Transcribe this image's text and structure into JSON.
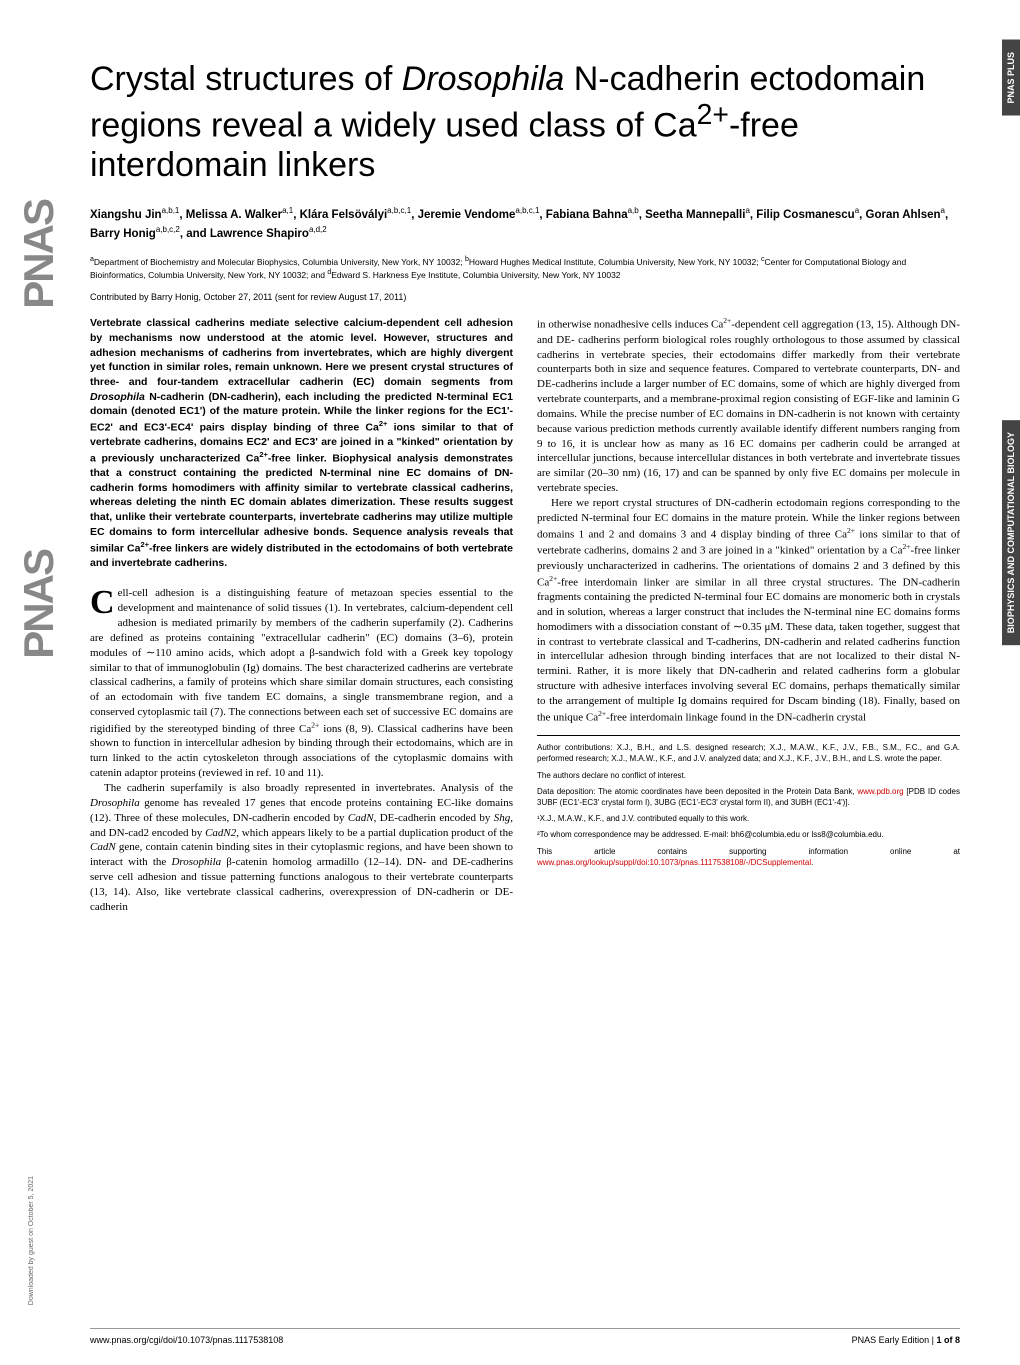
{
  "side_tabs": {
    "tab1": "PNAS PLUS",
    "tab2": "BIOPHYSICS AND COMPUTATIONAL BIOLOGY"
  },
  "logo": "PNAS",
  "downloaded_note": "Downloaded by guest on October 5, 2021",
  "title_parts": {
    "pre": "Crystal structures of ",
    "italic": "Drosophila",
    "post1": " N-cadherin ectodomain regions reveal a widely used class of Ca",
    "sup": "2+",
    "post2": "-free interdomain linkers"
  },
  "authors_html": "Xiangshu Jin<sup>a,b,1</sup>, Melissa A. Walker<sup>a,1</sup>, Klára Felsövályi<sup>a,b,c,1</sup>, Jeremie Vendome<sup>a,b,c,1</sup>, Fabiana Bahna<sup>a,b</sup>, Seetha Mannepalli<sup>a</sup>, Filip Cosmanescu<sup>a</sup>, Goran Ahlsen<sup>a</sup>, Barry Honig<sup>a,b,c,2</sup>, and Lawrence Shapiro<sup>a,d,2</sup>",
  "affiliations_html": "<sup>a</sup>Department of Biochemistry and Molecular Biophysics, Columbia University, New York, NY 10032; <sup>b</sup>Howard Hughes Medical Institute, Columbia University, New York, NY 10032; <sup>c</sup>Center for Computational Biology and Bioinformatics, Columbia University, New York, NY 10032; and <sup>d</sup>Edward S. Harkness Eye Institute, Columbia University, New York, NY 10032",
  "contributed": "Contributed by Barry Honig, October 27, 2011 (sent for review August 17, 2011)",
  "abstract_html": "Vertebrate classical cadherins mediate selective calcium-dependent cell adhesion by mechanisms now understood at the atomic level. However, structures and adhesion mechanisms of cadherins from invertebrates, which are highly divergent yet function in similar roles, remain unknown. Here we present crystal structures of three- and four-tandem extracellular cadherin (EC) domain segments from <i>Drosophila</i> N-cadherin (DN-cadherin), each including the predicted N-terminal EC1 domain (denoted EC1') of the mature protein. While the linker regions for the EC1'-EC2' and EC3'-EC4' pairs display binding of three Ca<sup>2+</sup> ions similar to that of vertebrate cadherins, domains EC2' and EC3' are joined in a \"kinked\" orientation by a previously uncharacterized Ca<sup>2+</sup>-free linker. Biophysical analysis demonstrates that a construct containing the predicted N-terminal nine EC domains of DN-cadherin forms homodimers with affinity similar to vertebrate classical cadherins, whereas deleting the ninth EC domain ablates dimerization. These results suggest that, unlike their vertebrate counterparts, invertebrate cadherins may utilize multiple EC domains to form intercellular adhesive bonds. Sequence analysis reveals that similar Ca<sup>2+</sup>-free linkers are widely distributed in the ectodomains of both vertebrate and invertebrate cadherins.",
  "col1_p1_html": "ell-cell adhesion is a distinguishing feature of metazoan species essential to the development and maintenance of solid tissues (1). In vertebrates, calcium-dependent cell adhesion is mediated primarily by members of the cadherin superfamily (2). Cadherins are defined as proteins containing \"extracellular cadherin\" (EC) domains (3–6), protein modules of ∼110 amino acids, which adopt a β-sandwich fold with a Greek key topology similar to that of immunoglobulin (Ig) domains. The best characterized cadherins are vertebrate classical cadherins, a family of proteins which share similar domain structures, each consisting of an ectodomain with five tandem EC domains, a single transmembrane region, and a conserved cytoplasmic tail (7). The connections between each set of successive EC domains are rigidified by the stereotyped binding of three Ca<sup>2+</sup> ions (8, 9). Classical cadherins have been shown to function in intercellular adhesion by binding through their ectodomains, which are in turn linked to the actin cytoskeleton through associations of the cytoplasmic domains with catenin adaptor proteins (reviewed in ref. 10 and 11).",
  "col1_p2_html": "The cadherin superfamily is also broadly represented in invertebrates. Analysis of the <i>Drosophila</i> genome has revealed 17 genes that encode proteins containing EC-like domains (12). Three of these molecules, DN-cadherin encoded by <i>CadN</i>, DE-cadherin encoded by <i>Shg</i>, and DN-cad2 encoded by <i>CadN2</i>, which appears likely to be a partial duplication product of the <i>CadN</i> gene, contain catenin binding sites in their cytoplasmic regions, and have been shown to interact with the <i>Drosophila</i> β-catenin homolog armadillo (12–14). DN- and DE-cadherins serve cell adhesion and tissue patterning functions analogous to their vertebrate counterparts (13, 14). Also, like vertebrate classical cadherins, overexpression of DN-cadherin or DE-cadherin",
  "col2_p1_html": "in otherwise nonadhesive cells induces Ca<sup>2+</sup>-dependent cell aggregation (13, 15). Although DN- and DE- cadherins perform biological roles roughly orthologous to those assumed by classical cadherins in vertebrate species, their ectodomains differ markedly from their vertebrate counterparts both in size and sequence features. Compared to vertebrate counterparts, DN- and DE-cadherins include a larger number of EC domains, some of which are highly diverged from vertebrate counterparts, and a membrane-proximal region consisting of EGF-like and laminin G domains. While the precise number of EC domains in DN-cadherin is not known with certainty because various prediction methods currently available identify different numbers ranging from 9 to 16, it is unclear how as many as 16 EC domains per cadherin could be arranged at intercellular junctions, because intercellular distances in both vertebrate and invertebrate tissues are similar (20–30 nm) (16, 17) and can be spanned by only five EC domains per molecule in vertebrate species.",
  "col2_p2_html": "Here we report crystal structures of DN-cadherin ectodomain regions corresponding to the predicted N-terminal four EC domains in the mature protein. While the linker regions between domains 1 and 2 and domains 3 and 4 display binding of three Ca<sup>2+</sup> ions similar to that of vertebrate cadherins, domains 2 and 3 are joined in a \"kinked\" orientation by a Ca<sup>2+</sup>-free linker previously uncharacterized in cadherins. The orientations of domains 2 and 3 defined by this Ca<sup>2+</sup>-free interdomain linker are similar in all three crystal structures. The DN-cadherin fragments containing the predicted N-terminal four EC domains are monomeric both in crystals and in solution, whereas a larger construct that includes the N-terminal nine EC domains forms homodimers with a dissociation constant of ∼0.35 μM. These data, taken together, suggest that in contrast to vertebrate classical and T-cadherins, DN-cadherin and related cadherins function in intercellular adhesion through binding interfaces that are not localized to their distal N-termini. Rather, it is more likely that DN-cadherin and related cadherins form a globular structure with adhesive interfaces involving several EC domains, perhaps thematically similar to the arrangement of multiple Ig domains required for Dscam binding (18). Finally, based on the unique Ca<sup>2+</sup>-free interdomain linkage found in the DN-cadherin crystal",
  "footnotes": {
    "author_contrib": "Author contributions: X.J., B.H., and L.S. designed research; X.J., M.A.W., K.F., J.V., F.B., S.M., F.C., and G.A. performed research; X.J., M.A.W., K.F., and J.V. analyzed data; and X.J., K.F., J.V., B.H., and L.S. wrote the paper.",
    "conflict": "The authors declare no conflict of interest.",
    "deposition_pre": "Data deposition: The atomic coordinates have been deposited in the Protein Data Bank, ",
    "deposition_link": "www.pdb.org",
    "deposition_post": " [PDB ID codes 3UBF (EC1'-EC3' crystal form I), 3UBG (EC1'-EC3' crystal form II), and 3UBH (EC1'-4')].",
    "equal": "¹X.J., M.A.W., K.F., and J.V. contributed equally to this work.",
    "correspond": "²To whom correspondence may be addressed. E-mail: bh6@columbia.edu or lss8@columbia.edu.",
    "supp_pre": "This article contains supporting information online at ",
    "supp_link": "www.pnas.org/lookup/suppl/doi:10.1073/pnas.1117538108/-/DCSupplemental",
    "supp_post": "."
  },
  "footer": {
    "left": "www.pnas.org/cgi/doi/10.1073/pnas.1117538108",
    "right_label": "PNAS Early Edition",
    "right_sep": " | ",
    "right_page": "1 of 8"
  },
  "colors": {
    "link": "#cc0000",
    "tab_bg": "#444444",
    "logo": "#888888"
  },
  "typography": {
    "title_fontsize": 34,
    "authors_fontsize": 11.5,
    "affil_fontsize": 8.5,
    "abstract_fontsize": 10.5,
    "body_fontsize": 11,
    "footnote_fontsize": 8,
    "footer_fontsize": 9
  }
}
